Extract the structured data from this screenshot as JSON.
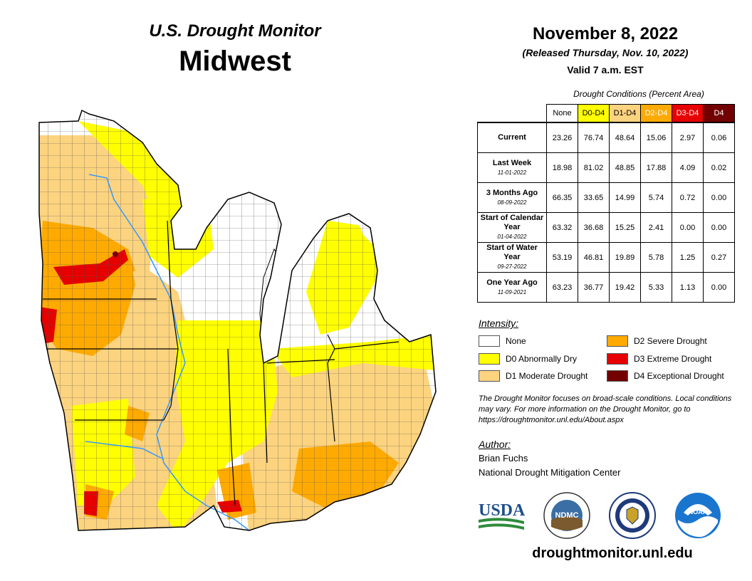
{
  "header": {
    "subtitle": "U.S. Drought Monitor",
    "title": "Midwest",
    "date": "November 8, 2022",
    "released": "(Released Thursday, Nov. 10, 2022)",
    "valid": "Valid 7 a.m. EST"
  },
  "table": {
    "caption": "Drought Conditions (Percent Area)",
    "columns": [
      {
        "label": "None",
        "color": "#ffffff",
        "text": "#000000"
      },
      {
        "label": "D0-D4",
        "color": "#ffff00",
        "text": "#000000"
      },
      {
        "label": "D1-D4",
        "color": "#fcd37f",
        "text": "#000000"
      },
      {
        "label": "D2-D4",
        "color": "#ffaa00",
        "text": "#ffffff"
      },
      {
        "label": "D3-D4",
        "color": "#e60000",
        "text": "#ffffff"
      },
      {
        "label": "D4",
        "color": "#730000",
        "text": "#ffffff"
      }
    ],
    "rows": [
      {
        "label": "Current",
        "sub": "",
        "values": [
          "23.26",
          "76.74",
          "48.64",
          "15.06",
          "2.97",
          "0.06"
        ]
      },
      {
        "label": "Last Week",
        "sub": "11-01-2022",
        "values": [
          "18.98",
          "81.02",
          "48.85",
          "17.88",
          "4.09",
          "0.02"
        ]
      },
      {
        "label": "3 Months Ago",
        "sub": "08-09-2022",
        "values": [
          "66.35",
          "33.65",
          "14.99",
          "5.74",
          "0.72",
          "0.00"
        ]
      },
      {
        "label": "Start of Calendar Year",
        "sub": "01-04-2022",
        "values": [
          "63.32",
          "36.68",
          "15.25",
          "2.41",
          "0.00",
          "0.00"
        ]
      },
      {
        "label": "Start of Water Year",
        "sub": "09-27-2022",
        "values": [
          "53.19",
          "46.81",
          "19.89",
          "5.78",
          "1.25",
          "0.27"
        ]
      },
      {
        "label": "One Year Ago",
        "sub": "11-09-2021",
        "values": [
          "63.23",
          "36.77",
          "19.42",
          "5.33",
          "1.13",
          "0.00"
        ]
      }
    ]
  },
  "legend": {
    "title": "Intensity:",
    "items": [
      {
        "label": "None",
        "color": "#ffffff"
      },
      {
        "label": "D0 Abnormally Dry",
        "color": "#ffff00"
      },
      {
        "label": "D1 Moderate Drought",
        "color": "#fcd37f"
      },
      {
        "label": "D2 Severe Drought",
        "color": "#ffaa00"
      },
      {
        "label": "D3 Extreme Drought",
        "color": "#e60000"
      },
      {
        "label": "D4 Exceptional Drought",
        "color": "#730000"
      }
    ]
  },
  "note": "The Drought Monitor focuses on broad-scale conditions. Local conditions may vary. For more information on the Drought Monitor, go to https://droughtmonitor.unl.edu/About.aspx",
  "author": {
    "heading": "Author:",
    "name": "Brian Fuchs",
    "org": "National Drought Mitigation Center"
  },
  "logos": {
    "usda": "USDA",
    "ndmc": "NDMC",
    "noaa": "NOAA"
  },
  "url": "droughtmonitor.unl.edu"
}
